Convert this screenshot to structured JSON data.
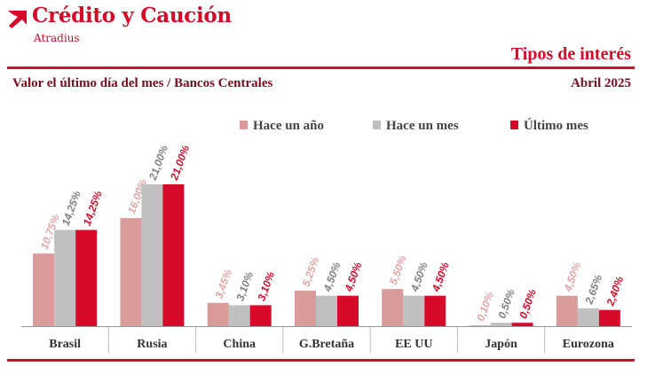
{
  "header": {
    "brand": "Crédito y Caución",
    "brand_sub": "Atradius",
    "report_title": "Tipos de interés",
    "subtitle": "Valor el último día del mes / Bancos Centrales",
    "date": "Abril 2025",
    "logo_icon": "red-arrow-logo-icon"
  },
  "colors": {
    "accent": "#d80a2a",
    "dark_red": "#7a0c1e",
    "hace_un_ano": "#d99a9a",
    "hace_un_mes": "#c0c0c0",
    "ultimo_mes": "#d80a2a"
  },
  "chart_data": {
    "type": "bar",
    "title": "",
    "xlabel": "",
    "ylabel": "",
    "ylim": [
      0,
      21
    ],
    "grid": false,
    "legend_position": "top-right",
    "categories": [
      "Brasil",
      "Rusia",
      "China",
      "G.Bretaña",
      "EE UU",
      "Japón",
      "Eurozona"
    ],
    "series": [
      {
        "name": "Hace un año",
        "color": "#d99a9a",
        "label_color": "#e1a6a6",
        "values": [
          10.75,
          16.0,
          3.45,
          5.25,
          5.5,
          0.1,
          4.5
        ],
        "labels": [
          "10,75%",
          "16,00%",
          "3,45%",
          "5,25%",
          "5,50%",
          "0,10%",
          "4,50%"
        ]
      },
      {
        "name": "Hace un mes",
        "color": "#c0c0c0",
        "label_color": "#808080",
        "values": [
          14.25,
          21.0,
          3.1,
          4.5,
          4.5,
          0.5,
          2.65
        ],
        "labels": [
          "14,25%",
          "21,00%",
          "3,10%",
          "4,50%",
          "4,50%",
          "0,50%",
          "2,65%"
        ]
      },
      {
        "name": "Último mes",
        "color": "#d80a2a",
        "label_color": "#d80a2a",
        "values": [
          14.25,
          21.0,
          3.1,
          4.5,
          4.5,
          0.5,
          2.4
        ],
        "labels": [
          "14,25%",
          "21,00%",
          "3,10%",
          "4,50%",
          "4,50%",
          "0,50%",
          "2,40%"
        ]
      }
    ]
  }
}
